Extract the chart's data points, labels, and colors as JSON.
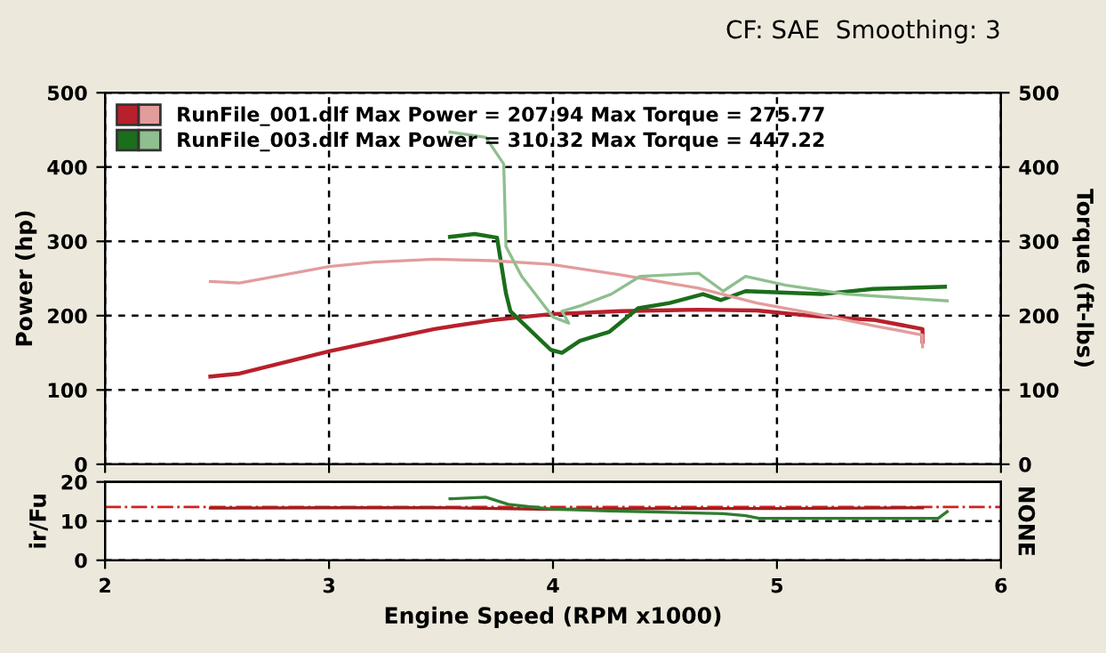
{
  "chart_data": [
    {
      "type": "line",
      "title": "CF: SAE  Smoothing: 3",
      "ylabel": "Power (hp)",
      "y2label": "Torque (ft-lbs)",
      "xlim": [
        2,
        6
      ],
      "xticks": [
        2,
        3,
        4,
        5,
        6
      ],
      "ylim": [
        0,
        500
      ],
      "yticks": [
        0,
        100,
        200,
        300,
        400,
        500
      ],
      "y2lim": [
        0,
        500
      ],
      "y2ticks": [
        0,
        100,
        200,
        300,
        400,
        500
      ],
      "tick_labels": "y",
      "grid": true,
      "legend": "top left",
      "line_style": "solid",
      "marker": "none",
      "series": [
        {
          "name": "RunFile_001.dlf Max Power = 207.94 Max Torque = 275.77",
          "color": "#b8202c",
          "x": [
            2.47,
            2.6,
            2.8,
            3.0,
            3.2,
            3.47,
            3.73,
            3.99,
            4.3,
            4.65,
            4.91,
            5.18,
            5.44,
            5.65,
            5.65
          ],
          "values": [
            118,
            122,
            137,
            152,
            165,
            182,
            194,
            202,
            206,
            208,
            207,
            199,
            194,
            182,
            165
          ]
        },
        {
          "color": "#e39c9c",
          "axis": "y2",
          "x": [
            2.47,
            2.6,
            2.8,
            3.0,
            3.2,
            3.47,
            3.73,
            3.99,
            4.3,
            4.65,
            4.91,
            5.18,
            5.44,
            5.65,
            5.65
          ],
          "values": [
            246,
            244,
            255,
            266,
            272,
            276,
            274,
            269,
            255,
            237,
            217,
            202,
            186,
            174,
            158
          ]
        },
        {
          "name": "RunFile_003.dlf Max Power = 310.32 Max Torque = 447.22",
          "color": "#1b6e1b",
          "x": [
            3.54,
            3.65,
            3.75,
            3.79,
            3.81,
            3.99,
            4.04,
            4.12,
            4.25,
            4.38,
            4.52,
            4.67,
            4.75,
            4.86,
            5.04,
            5.2,
            5.43,
            5.75
          ],
          "values": [
            306,
            310,
            305,
            230,
            206,
            154,
            150,
            166,
            178,
            210,
            217,
            229,
            221,
            233,
            231,
            229,
            236,
            239
          ]
        },
        {
          "color": "#8fbf8f",
          "axis": "y2",
          "x": [
            3.54,
            3.7,
            3.78,
            3.79,
            3.86,
            4.0,
            4.07,
            4.04,
            4.12,
            4.26,
            4.39,
            4.65,
            4.76,
            4.86,
            5.04,
            5.31,
            5.76
          ],
          "values": [
            447,
            440,
            404,
            293,
            253,
            198,
            190,
            206,
            213,
            229,
            253,
            257,
            233,
            253,
            241,
            229,
            220
          ]
        }
      ]
    },
    {
      "type": "line",
      "xlabel": "Engine Speed (RPM x1000)",
      "ylabel": "ir/Fu",
      "y2label": "NONE",
      "xlim": [
        2,
        6
      ],
      "xticks": [
        2,
        3,
        4,
        5,
        6
      ],
      "ylim": [
        0,
        20
      ],
      "yticks": [
        0,
        10,
        20
      ],
      "grid": "y",
      "line_style": "solid",
      "marker": "none",
      "ref_lines": [
        {
          "axis": "y",
          "value": 13.6,
          "color": "#d42020",
          "line_style": "dashed"
        }
      ],
      "series": [
        {
          "color": "#a02020",
          "x": [
            2.47,
            3.0,
            3.5,
            4.0,
            4.5,
            5.0,
            5.65
          ],
          "values": [
            13.3,
            13.4,
            13.4,
            13.0,
            13.2,
            13.2,
            13.4
          ]
        },
        {
          "color": "#2e7d2e",
          "x": [
            3.54,
            3.7,
            3.8,
            3.99,
            4.25,
            4.76,
            4.86,
            4.92,
            5.72,
            5.76
          ],
          "values": [
            15.7,
            16.1,
            14.3,
            13.1,
            12.6,
            11.9,
            11.4,
            10.7,
            10.7,
            12.4
          ]
        }
      ]
    }
  ]
}
